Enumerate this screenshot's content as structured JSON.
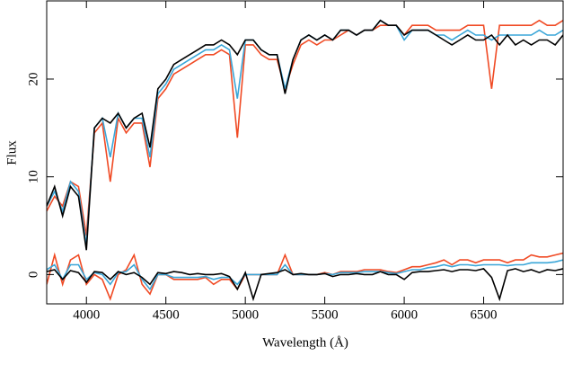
{
  "chart_data": {
    "type": "line",
    "xlabel": "Wavelength (Å)",
    "ylabel": "Flux",
    "xlim": [
      3750,
      7000
    ],
    "ylim": [
      -3,
      28
    ],
    "xticks": [
      4000,
      4500,
      5000,
      5500,
      6000,
      6500
    ],
    "yticks": [
      0,
      10,
      20
    ],
    "x": [
      3750,
      3800,
      3850,
      3900,
      3950,
      4000,
      4050,
      4100,
      4150,
      4200,
      4250,
      4300,
      4350,
      4400,
      4450,
      4500,
      4550,
      4600,
      4650,
      4700,
      4750,
      4800,
      4850,
      4900,
      4950,
      5000,
      5050,
      5100,
      5150,
      5200,
      5250,
      5300,
      5350,
      5400,
      5450,
      5500,
      5550,
      5600,
      5650,
      5700,
      5750,
      5800,
      5850,
      5900,
      5950,
      6000,
      6050,
      6100,
      6150,
      6200,
      6250,
      6300,
      6350,
      6400,
      6450,
      6500,
      6550,
      6600,
      6650,
      6700,
      6750,
      6800,
      6850,
      6900,
      6950,
      7000
    ],
    "series": [
      {
        "color": "#f04a24",
        "values": [
          6.5,
          8,
          7,
          9.5,
          9,
          4,
          14.5,
          15.5,
          9.5,
          16,
          14.5,
          15.5,
          15.5,
          11,
          18,
          19,
          20.5,
          21,
          21.5,
          22,
          22.5,
          22.5,
          23,
          22.5,
          14,
          23.5,
          23.5,
          22.5,
          22,
          22,
          19,
          21.5,
          23.5,
          24,
          23.5,
          24,
          24,
          24.5,
          25,
          24.5,
          25,
          25,
          25.5,
          25.5,
          25.5,
          24.5,
          25.5,
          25.5,
          25.5,
          25,
          25,
          25,
          25,
          25.5,
          25.5,
          25.5,
          19,
          25.5,
          25.5,
          25.5,
          25.5,
          25.5,
          26,
          25.5,
          25.5,
          26
        ]
      },
      {
        "color": "#3aa6d8",
        "values": [
          7,
          8.5,
          6.5,
          9.5,
          8.5,
          3,
          15,
          16,
          12,
          16.5,
          15,
          16,
          16,
          12,
          18.5,
          19.5,
          21,
          21.5,
          22,
          22.5,
          23,
          23,
          23.5,
          23,
          18,
          24,
          24,
          23,
          22.5,
          22.5,
          19,
          22,
          24,
          24.5,
          24,
          24.5,
          24,
          25,
          25,
          24.5,
          25,
          25,
          26,
          25.5,
          25.5,
          24,
          25,
          25,
          25,
          24.5,
          24.5,
          24,
          24.5,
          25,
          24.5,
          24.5,
          24,
          24.5,
          24.5,
          24.5,
          24.5,
          24.5,
          25,
          24.5,
          24.5,
          25
        ]
      },
      {
        "color": "#f04a24",
        "values": [
          -1,
          2,
          -1,
          1.5,
          2,
          -1,
          0,
          -0.5,
          -2.5,
          0,
          0.5,
          2,
          -1,
          -2,
          0,
          0,
          -0.5,
          -0.5,
          -0.5,
          -0.5,
          -0.3,
          -1,
          -0.5,
          -0.5,
          -1.5,
          0,
          0,
          0,
          0,
          0,
          2,
          0,
          0,
          0,
          0,
          0.2,
          0,
          0.3,
          0.3,
          0.3,
          0.5,
          0.5,
          0.5,
          0.3,
          0.2,
          0.5,
          0.8,
          0.8,
          1,
          1.2,
          1.5,
          1,
          1.5,
          1.5,
          1.2,
          1.5,
          1.5,
          1.5,
          1.2,
          1.5,
          1.5,
          2,
          1.8,
          1.8,
          2,
          2.2
        ]
      },
      {
        "color": "#3aa6d8",
        "values": [
          0.5,
          1,
          -0.5,
          1,
          1,
          -0.5,
          0.2,
          0,
          -1,
          0.2,
          0.3,
          1,
          -0.5,
          -1.5,
          0,
          0,
          -0.3,
          -0.3,
          -0.3,
          -0.3,
          -0.2,
          -0.5,
          -0.3,
          -0.3,
          -1,
          0,
          0,
          0,
          0,
          0,
          1,
          0,
          0,
          0,
          0,
          0.1,
          0,
          0.2,
          0.2,
          0.2,
          0.3,
          0.3,
          0.3,
          0.2,
          0.1,
          0.3,
          0.5,
          0.5,
          0.7,
          0.8,
          1,
          0.8,
          1,
          1,
          0.9,
          1,
          1,
          1,
          0.9,
          1,
          1,
          1.2,
          1.2,
          1.2,
          1.3,
          1.5
        ]
      },
      {
        "color": "#000000",
        "values": [
          0.3,
          0.5,
          -0.5,
          0.4,
          0.2,
          -0.8,
          0.3,
          0.2,
          -0.5,
          0.3,
          0,
          0.2,
          -0.3,
          -1,
          0.2,
          0.1,
          0.3,
          0.2,
          0,
          0.1,
          0,
          0,
          0.1,
          -0.2,
          -1.5,
          0.2,
          -2.5,
          0,
          0.1,
          0.2,
          0.5,
          0,
          0.1,
          0,
          0,
          0.1,
          -0.2,
          0,
          0,
          0.1,
          0,
          0,
          0.3,
          0,
          0,
          -0.5,
          0.2,
          0.3,
          0.3,
          0.4,
          0.5,
          0.3,
          0.5,
          0.5,
          0.4,
          0.6,
          -0.3,
          -2.5,
          0.4,
          0.6,
          0.3,
          0.5,
          0.2,
          0.5,
          0.4,
          0.6
        ]
      },
      {
        "color": "#000000",
        "values": [
          7,
          9,
          6,
          9,
          8,
          2.5,
          15,
          16,
          15.5,
          16.5,
          15,
          16,
          16.5,
          13,
          19,
          20,
          21.5,
          22,
          22.5,
          23,
          23.5,
          23.5,
          24,
          23.5,
          22.5,
          24,
          24,
          23,
          22.5,
          22.5,
          18.5,
          22,
          24,
          24.5,
          24,
          24.5,
          24,
          25,
          25,
          24.5,
          25,
          25,
          26,
          25.5,
          25.5,
          24.5,
          25,
          25,
          25,
          24.5,
          24,
          23.5,
          24,
          24.5,
          24,
          24,
          24.5,
          23.5,
          24.5,
          23.5,
          24,
          23.5,
          24,
          24,
          23.5,
          24.5
        ]
      }
    ]
  }
}
